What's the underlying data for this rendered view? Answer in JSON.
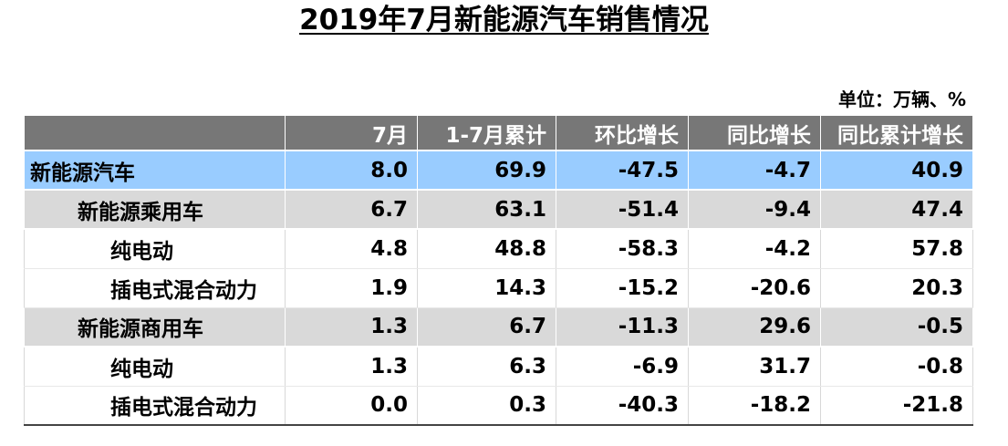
{
  "chart_data": {
    "type": "table",
    "title": "2019年7月新能源汽车销售情况",
    "unit": "单位：万辆、%",
    "columns": [
      "",
      "7月",
      "1-7月累计",
      "环比增长",
      "同比增长",
      "同比累计增长"
    ],
    "rows": [
      {
        "label": "新能源汽车",
        "level": 0,
        "style": "blue",
        "values": [
          "8.0",
          "69.9",
          "-47.5",
          "-4.7",
          "40.9"
        ]
      },
      {
        "label": "新能源乘用车",
        "level": 1,
        "style": "gray",
        "values": [
          "6.7",
          "63.1",
          "-51.4",
          "-9.4",
          "47.4"
        ]
      },
      {
        "label": "纯电动",
        "level": 2,
        "style": "white",
        "values": [
          "4.8",
          "48.8",
          "-58.3",
          "-4.2",
          "57.8"
        ]
      },
      {
        "label": "插电式混合动力",
        "level": 2,
        "style": "white",
        "values": [
          "1.9",
          "14.3",
          "-15.2",
          "-20.6",
          "20.3"
        ]
      },
      {
        "label": "新能源商用车",
        "level": 1,
        "style": "gray",
        "values": [
          "1.3",
          "6.7",
          "-11.3",
          "29.6",
          "-0.5"
        ]
      },
      {
        "label": "纯电动",
        "level": 2,
        "style": "white",
        "values": [
          "1.3",
          "6.3",
          "-6.9",
          "31.7",
          "-0.8"
        ]
      },
      {
        "label": "插电式混合动力",
        "level": 2,
        "style": "white",
        "values": [
          "0.0",
          "0.3",
          "-40.3",
          "-18.2",
          "-21.8"
        ]
      }
    ]
  }
}
